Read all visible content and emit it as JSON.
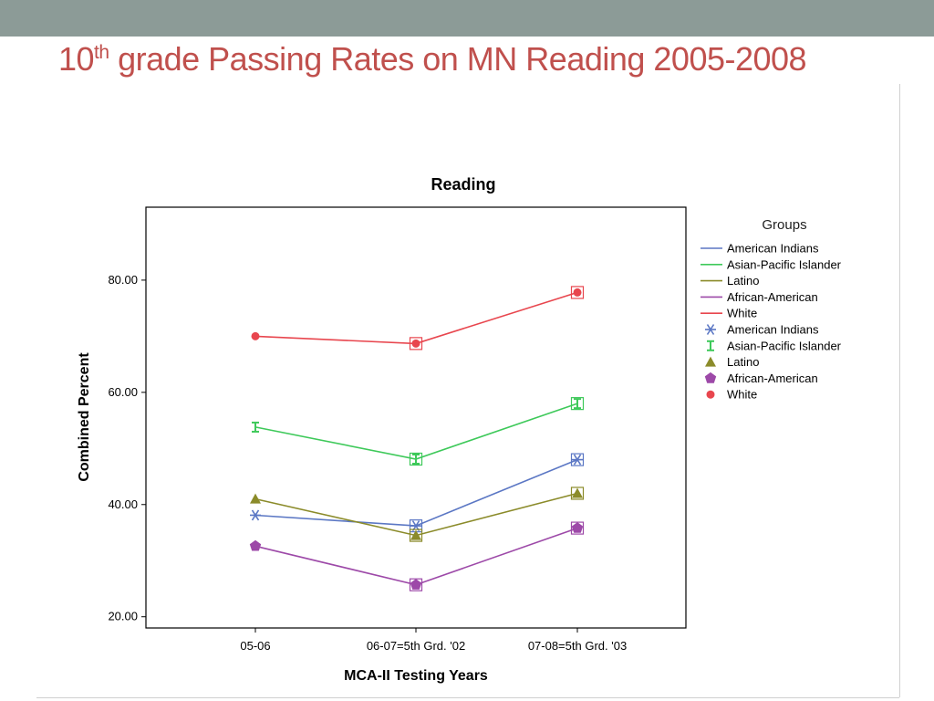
{
  "slide": {
    "title_main": "10",
    "title_sup": "th",
    "title_rest": " grade Passing Rates on MN Reading 2005-2008"
  },
  "chart_data": {
    "type": "line",
    "title": "Reading",
    "xlabel": "MCA-II Testing Years",
    "ylabel": "Combined Percent",
    "categories": [
      "05-06",
      "06-07=5th Grd. '02",
      "07-08=5th Grd. '03"
    ],
    "yticks": [
      "20.00",
      "40.00",
      "60.00",
      "80.00"
    ],
    "ylim": [
      18,
      93
    ],
    "grid": false,
    "legend_title": "Groups",
    "legend_placement": "right",
    "series": [
      {
        "name": "American Indians",
        "color": "#5b77c4",
        "marker": "asterisk",
        "values": [
          38.1,
          36.2,
          48.0
        ]
      },
      {
        "name": "Asian-Pacific Islander",
        "color": "#3ec95a",
        "marker": "i-beam",
        "values": [
          53.8,
          48.1,
          58.0
        ]
      },
      {
        "name": "Latino",
        "color": "#8b8b2a",
        "marker": "triangle",
        "values": [
          41.0,
          34.5,
          42.0
        ]
      },
      {
        "name": "African-American",
        "color": "#9d49a8",
        "marker": "pentagon",
        "values": [
          32.6,
          25.7,
          35.8
        ]
      },
      {
        "name": "White",
        "color": "#e8464e",
        "marker": "circle",
        "values": [
          70.0,
          68.7,
          77.8
        ]
      }
    ]
  }
}
